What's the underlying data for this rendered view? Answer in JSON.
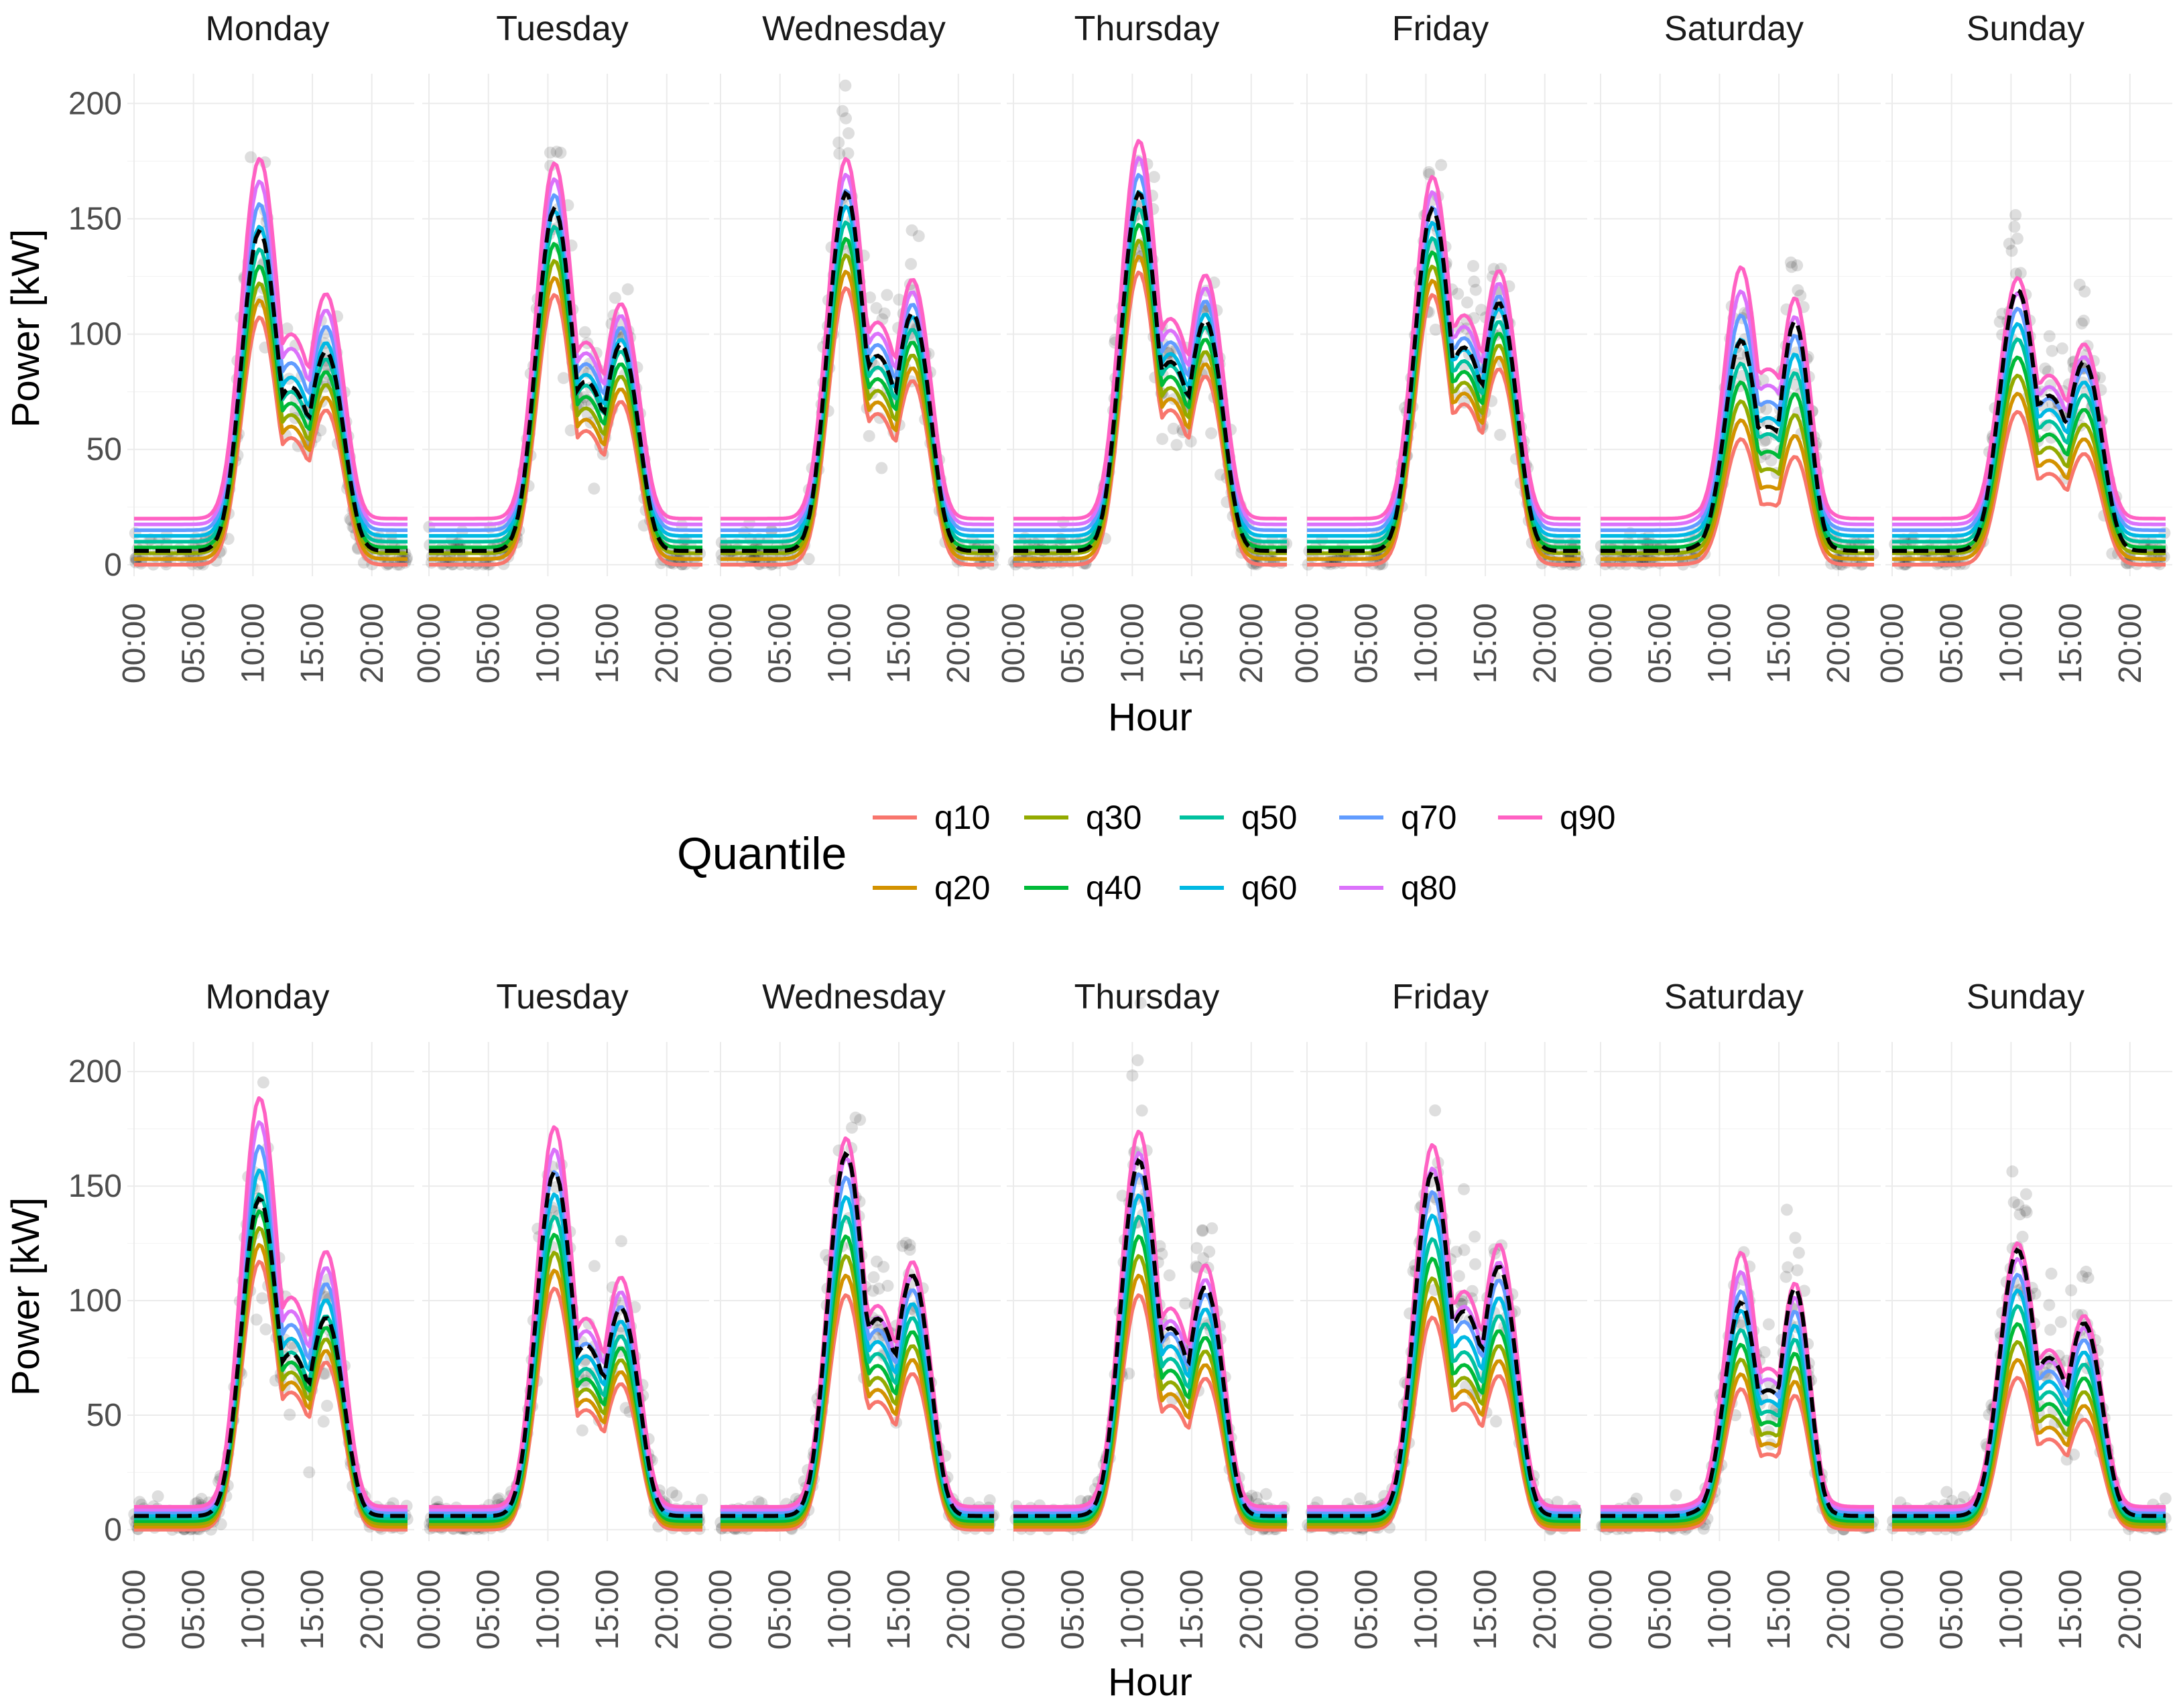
{
  "chart_data": [
    {
      "type": "line",
      "panel": "top",
      "facets": [
        "Monday",
        "Tuesday",
        "Wednesday",
        "Thursday",
        "Friday",
        "Saturday",
        "Sunday"
      ],
      "xlabel": "Hour",
      "ylabel": "Power [kW]",
      "xlim": [
        0,
        23
      ],
      "ylim": [
        -5,
        210
      ],
      "x_ticks": [
        "00:00",
        "05:00",
        "10:00",
        "15:00",
        "20:00"
      ],
      "y_ticks": [
        0,
        50,
        100,
        150,
        200
      ],
      "peaks": {
        "q10": [
          110,
          120,
          123,
          130,
          120,
          [
            55,
            48
          ],
          68
        ],
        "q50": [
          140,
          150,
          152,
          158,
          145,
          [
            88,
            85
          ],
          100
        ],
        "q90": [
          180,
          178,
          180,
          188,
          172,
          [
            130,
            118
          ],
          127
        ],
        "observed_median": [
          148,
          158,
          165,
          165,
          158,
          [
            98,
            108
          ],
          122
        ]
      },
      "baselines": {
        "q10": 0,
        "q90": 20
      }
    },
    {
      "type": "line",
      "panel": "bottom",
      "facets": [
        "Monday",
        "Tuesday",
        "Wednesday",
        "Thursday",
        "Friday",
        "Saturday",
        "Sunday"
      ],
      "xlabel": "Hour",
      "ylabel": "Power [kW]",
      "xlim": [
        0,
        23
      ],
      "ylim": [
        -5,
        210
      ],
      "x_ticks": [
        "00:00",
        "05:00",
        "10:00",
        "15:00",
        "20:00"
      ],
      "y_ticks": [
        0,
        50,
        100,
        150,
        200
      ],
      "peaks": {
        "q10": [
          120,
          108,
          105,
          105,
          95,
          [
            62,
            60
          ],
          68
        ],
        "q50": [
          150,
          140,
          140,
          140,
          130,
          [
            88,
            85
          ],
          100
        ],
        "q90": [
          193,
          180,
          175,
          178,
          172,
          [
            122,
            110
          ],
          128
        ],
        "observed_median": [
          148,
          160,
          168,
          165,
          160,
          [
            100,
            108
          ],
          125
        ]
      },
      "baselines": {
        "q10": 0,
        "q90": 10
      }
    }
  ],
  "legend": {
    "title": "Quantile",
    "items": [
      {
        "label": "q10",
        "color": "#F8766D"
      },
      {
        "label": "q20",
        "color": "#D39200"
      },
      {
        "label": "q30",
        "color": "#93AA00"
      },
      {
        "label": "q40",
        "color": "#00BA38"
      },
      {
        "label": "q50",
        "color": "#00C19F"
      },
      {
        "label": "q60",
        "color": "#00B9E3"
      },
      {
        "label": "q70",
        "color": "#619CFF"
      },
      {
        "label": "q80",
        "color": "#DB72FB"
      },
      {
        "label": "q90",
        "color": "#FF61C3"
      }
    ]
  }
}
